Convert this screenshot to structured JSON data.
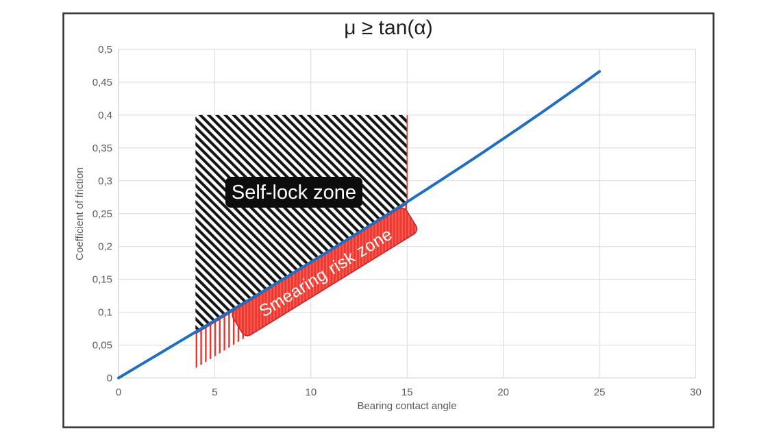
{
  "figure": {
    "kind": "chart-figure",
    "frame_border_color": "#333333",
    "background": "#FFFFFF"
  },
  "colors": {
    "line": "#1E6FC4",
    "gridline": "#D9D9D9",
    "axis_line": "#C2C2C2",
    "tick_text": "#595959",
    "title_text": "#1F1F1F"
  },
  "chart_data": {
    "type": "line",
    "title": "μ ≥ tan(α)",
    "xlabel": "Bearing contact angle",
    "ylabel": "Coefficient of friction",
    "xlim": [
      0,
      30
    ],
    "ylim": [
      0,
      0.5
    ],
    "grid": true,
    "legend": false,
    "decimal_separator": ",",
    "x_ticks": {
      "values": [
        0,
        5,
        10,
        15,
        20,
        25,
        30
      ],
      "labels": [
        "0",
        "5",
        "10",
        "15",
        "20",
        "25",
        "30"
      ]
    },
    "y_ticks": {
      "values": [
        0,
        0.05,
        0.1,
        0.15,
        0.2,
        0.25,
        0.3,
        0.35,
        0.4,
        0.45,
        0.5
      ],
      "labels": [
        "0",
        "0,05",
        "0,1",
        "0,15",
        "0,2",
        "0,25",
        "0,3",
        "0,35",
        "0,4",
        "0,45",
        "0,5"
      ]
    },
    "series": [
      {
        "name": "tan(α)",
        "color": "#1E6FC4",
        "line_width": 4,
        "x": [
          0,
          1,
          2,
          3,
          4,
          5,
          6,
          7,
          8,
          9,
          10,
          11,
          12,
          13,
          14,
          15,
          16,
          17,
          18,
          19,
          20,
          21,
          22,
          23,
          24,
          25
        ],
        "y": [
          0,
          0.0175,
          0.0349,
          0.0524,
          0.0699,
          0.0875,
          0.1051,
          0.1228,
          0.1405,
          0.1584,
          0.1763,
          0.1944,
          0.2126,
          0.2309,
          0.2493,
          0.2679,
          0.2867,
          0.3057,
          0.3249,
          0.3443,
          0.364,
          0.3839,
          0.404,
          0.4245,
          0.4452,
          0.4663
        ]
      }
    ],
    "zones": [
      {
        "id": "self-lock",
        "label": "Self-lock zone",
        "x_range": [
          4,
          15
        ],
        "y_top": 0.4,
        "bottom_boundary": "curve",
        "pattern": "black-diagonal-hatch",
        "label_box_color": "#0D0D0D",
        "label_text_color": "#FFFFFF"
      },
      {
        "id": "smearing-risk",
        "label": "Smearing risk zone",
        "x_range": [
          4,
          15
        ],
        "depth_below_curve": 0.055,
        "pattern": "red-vertical-hatch",
        "hatch_color": "#E8352B",
        "band_x_range": [
          6,
          14.6
        ],
        "band_color": "#EF372D",
        "band_edge_color": "#C8232E",
        "label_text_color": "#FFFFFF"
      }
    ]
  }
}
